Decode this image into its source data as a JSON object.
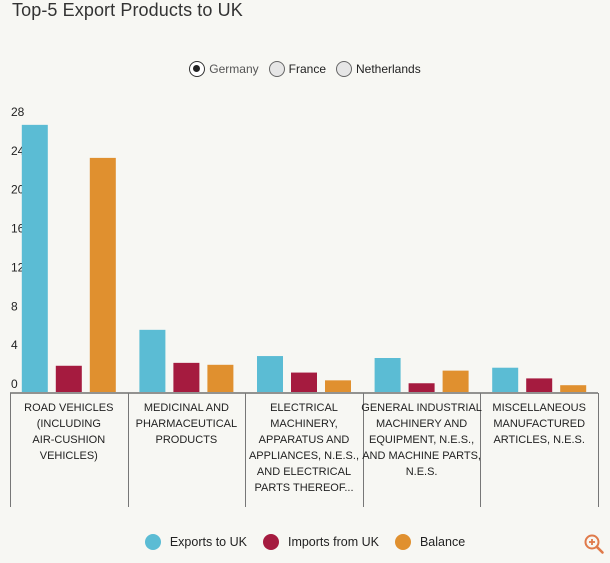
{
  "title": "Top-5 Export Products to UK",
  "countries": [
    {
      "label": "Germany",
      "selected": true
    },
    {
      "label": "France",
      "selected": false
    },
    {
      "label": "Netherlands",
      "selected": false
    }
  ],
  "legend": [
    {
      "label": "Exports to UK",
      "color": "#5bbcd4"
    },
    {
      "label": "Imports from UK",
      "color": "#a51b3f"
    },
    {
      "label": "Balance",
      "color": "#e0902f"
    }
  ],
  "icons": {
    "zoom": "zoom-in-icon"
  },
  "chart_data": {
    "type": "bar",
    "title": "Top-5 Export Products to UK",
    "xlabel": "",
    "ylabel": "",
    "ylim": [
      0,
      28
    ],
    "yticks": [
      0,
      4,
      8,
      12,
      16,
      20,
      24,
      28
    ],
    "categories": [
      [
        "ROAD VEHICLES",
        "(INCLUDING",
        "AIR-CUSHION",
        "VEHICLES)"
      ],
      [
        "MEDICINAL AND",
        "PHARMACEUTICAL",
        "PRODUCTS"
      ],
      [
        "ELECTRICAL",
        "MACHINERY,",
        "APPARATUS AND",
        "APPLIANCES, N.E.S.,",
        "AND ELECTRICAL",
        "PARTS THEREOF..."
      ],
      [
        "GENERAL INDUSTRIAL",
        "MACHINERY AND",
        "EQUIPMENT, N.E.S.,",
        "AND MACHINE PARTS,",
        "N.E.S."
      ],
      [
        "MISCELLANEOUS",
        "MANUFACTURED",
        "ARTICLES, N.E.S."
      ]
    ],
    "series": [
      {
        "name": "Exports to UK",
        "values": [
          27.5,
          6.4,
          3.7,
          3.5,
          2.5
        ]
      },
      {
        "name": "Imports from UK",
        "values": [
          2.7,
          3.0,
          2.0,
          0.9,
          1.4
        ]
      },
      {
        "name": "Balance",
        "values": [
          24.1,
          2.8,
          1.2,
          2.2,
          0.7
        ]
      }
    ],
    "legend_position": "bottom",
    "grid": false
  }
}
